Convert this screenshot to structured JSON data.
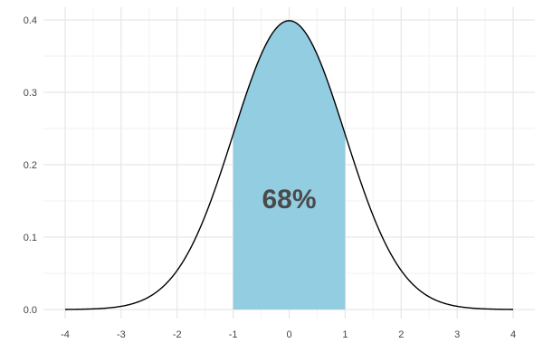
{
  "chart_data": {
    "type": "area",
    "title": "",
    "xlabel": "",
    "ylabel": "",
    "xlim": [
      -4,
      4
    ],
    "ylim": [
      0,
      0.4
    ],
    "x_ticks": [
      -4,
      -3,
      -2,
      -1,
      0,
      1,
      2,
      3,
      4
    ],
    "x_tick_labels": [
      "-4",
      "-3",
      "-2",
      "-1",
      "0",
      "1",
      "2",
      "3",
      "4"
    ],
    "y_ticks": [
      0.0,
      0.1,
      0.2,
      0.3,
      0.4
    ],
    "y_tick_labels": [
      "0.0",
      "0.1",
      "0.2",
      "0.3",
      "0.4"
    ],
    "grid": true,
    "series": [
      {
        "distribution": "standard normal density",
        "mean": 0,
        "sd": 1,
        "line_color": "#000000"
      }
    ],
    "shaded_region": {
      "x_from": -1,
      "x_to": 1,
      "color": "#92cde1"
    },
    "annotation": {
      "text": "68%",
      "x": 0,
      "y": 0.15
    }
  }
}
